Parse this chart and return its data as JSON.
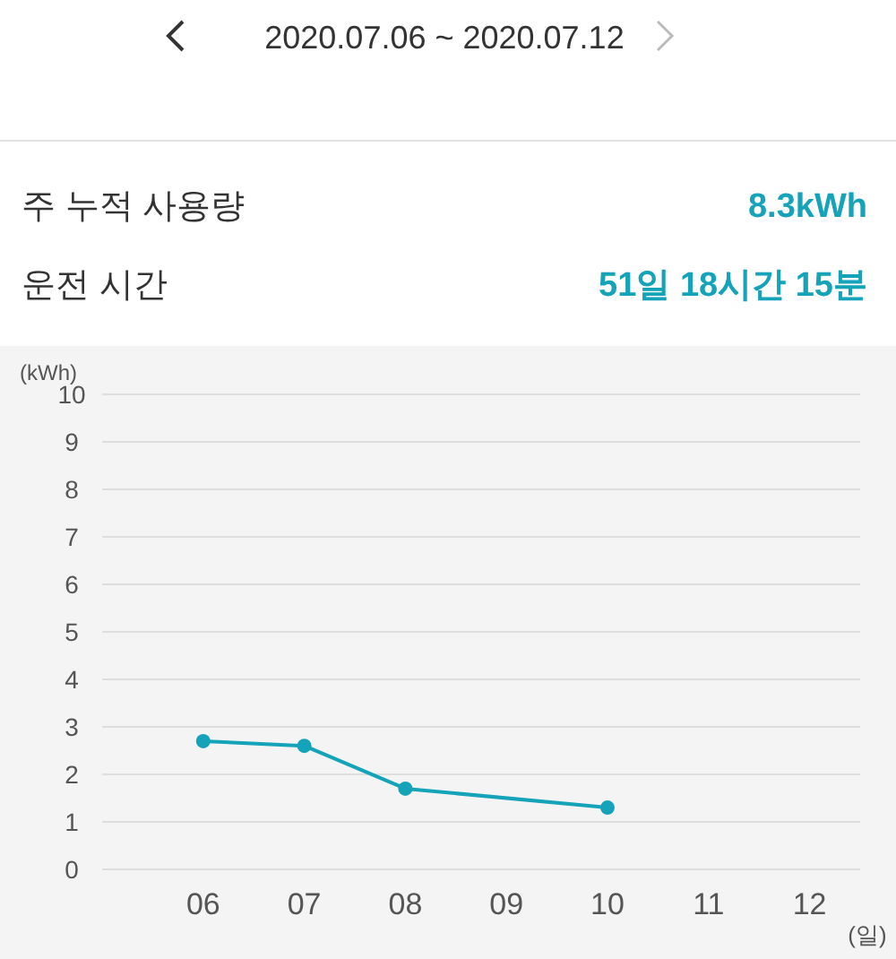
{
  "chart_data": {
    "type": "line",
    "title": "2020.07.06 ~ 2020.07.12",
    "annotations": [
      "주 누적 사용량",
      "8.3kWh",
      "운전 시간",
      "51일 18시간 15분"
    ],
    "xlabel": "(일)",
    "ylabel": "(kWh)",
    "categories": [
      "06",
      "07",
      "08",
      "09",
      "10",
      "11",
      "12"
    ],
    "series": [
      {
        "color": "#14a3b8",
        "values": [
          2.7,
          2.6,
          1.7,
          null,
          1.3,
          null,
          null
        ]
      }
    ],
    "ylim": [
      0,
      10
    ],
    "yticks": [
      0,
      1,
      2,
      3,
      4,
      5,
      6,
      7,
      8,
      9,
      10
    ],
    "grid": "y",
    "marker": "circle",
    "line_style": "solid"
  }
}
